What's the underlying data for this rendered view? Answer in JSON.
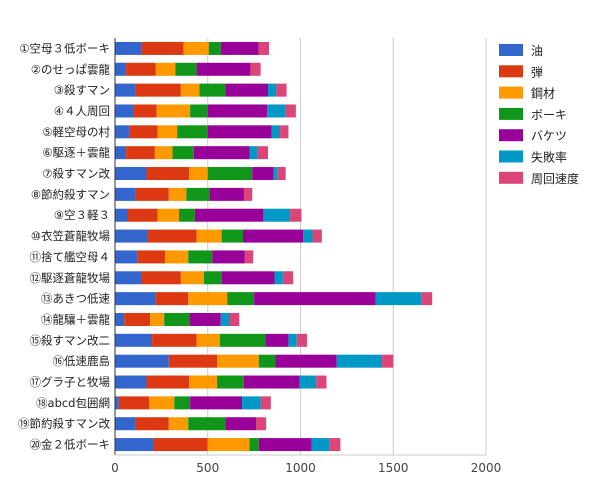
{
  "chart_data": {
    "type": "bar",
    "orientation": "horizontal",
    "stacked": true,
    "title": "",
    "xlabel": "",
    "ylabel": "",
    "xlim": [
      0,
      2000
    ],
    "xticks": [
      0,
      500,
      1000,
      1500,
      2000
    ],
    "grid": true,
    "legend_position": "right",
    "categories": [
      "①空母３低ボーキ",
      "②のせっぱ雲龍",
      "③殺すマン",
      "④４人周回",
      "⑤軽空母の村",
      "⑥駆逐＋雲龍",
      "⑦殺すマン改",
      "⑧節約殺すマン",
      "⑨空３軽３",
      "⑩衣笠蒼龍牧場",
      "⑪捨て艦空母４",
      "⑫駆逐蒼龍牧場",
      "⑬あきつ低速",
      "⑭龍驤＋雲龍",
      "⑮殺すマン改二",
      "⑯低速鹿島",
      "⑰グラ子と牧場",
      "⑱abcd包囲網",
      "⑲節約殺すマン改",
      "⑳金２低ボーキ"
    ],
    "series": [
      {
        "name": "油",
        "color": "#3366cc",
        "values": [
          145,
          60,
          110,
          100,
          80,
          60,
          170,
          110,
          70,
          175,
          120,
          140,
          220,
          50,
          200,
          290,
          170,
          20,
          110,
          210
        ]
      },
      {
        "name": "弾",
        "color": "#dc3912",
        "values": [
          225,
          160,
          245,
          125,
          150,
          155,
          230,
          180,
          160,
          265,
          150,
          215,
          175,
          140,
          240,
          260,
          230,
          165,
          180,
          290
        ]
      },
      {
        "name": "鋼材",
        "color": "#ff9900",
        "values": [
          135,
          105,
          100,
          180,
          105,
          95,
          100,
          95,
          115,
          135,
          125,
          125,
          210,
          75,
          125,
          225,
          150,
          135,
          105,
          225
        ]
      },
      {
        "name": "ボーキ",
        "color": "#109618",
        "values": [
          65,
          115,
          140,
          95,
          165,
          115,
          240,
          125,
          85,
          115,
          130,
          95,
          145,
          135,
          245,
          90,
          145,
          85,
          200,
          50
        ]
      },
      {
        "name": "バケツ",
        "color": "#990099",
        "values": [
          205,
          290,
          230,
          320,
          345,
          300,
          115,
          185,
          370,
          325,
          175,
          285,
          655,
          170,
          125,
          330,
          300,
          280,
          165,
          285
        ]
      },
      {
        "name": "失敗率",
        "color": "#0099c6",
        "values": [
          0,
          0,
          45,
          100,
          45,
          45,
          20,
          0,
          145,
          50,
          0,
          45,
          245,
          50,
          45,
          245,
          90,
          100,
          0,
          95
        ]
      },
      {
        "name": "周回速度",
        "color": "#dd4477",
        "values": [
          55,
          55,
          55,
          55,
          45,
          55,
          45,
          45,
          60,
          50,
          45,
          55,
          60,
          50,
          55,
          60,
          55,
          55,
          55,
          60
        ]
      }
    ]
  }
}
